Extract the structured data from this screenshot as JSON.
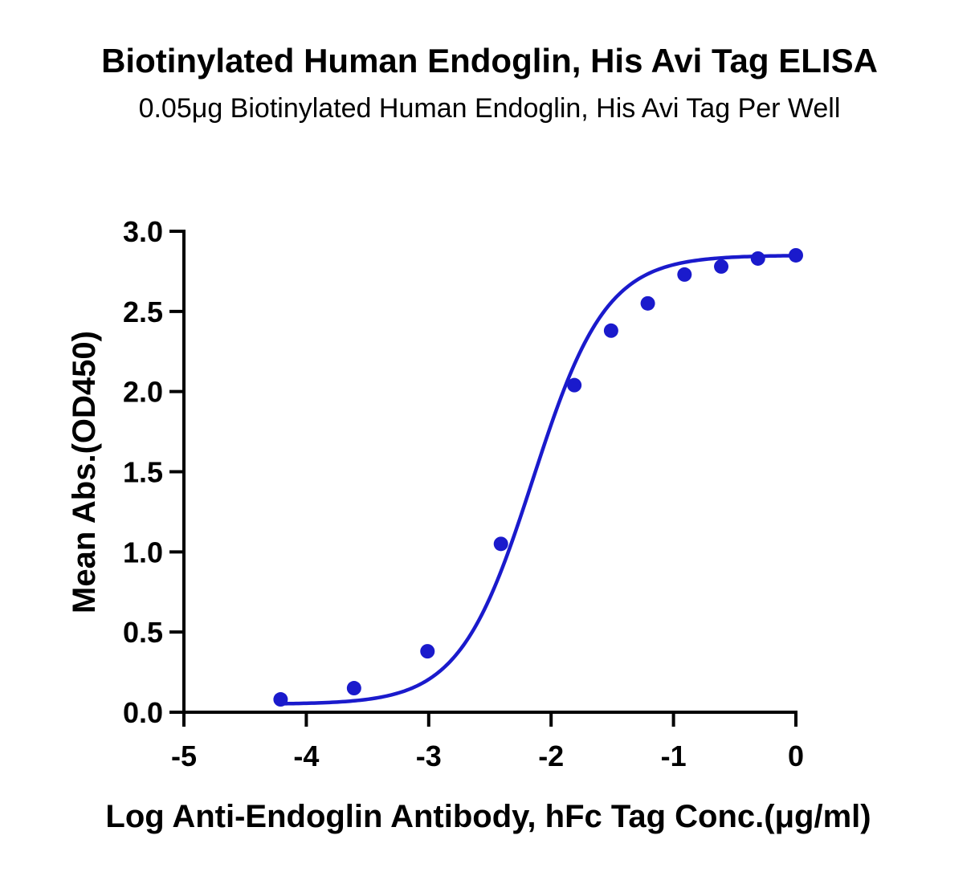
{
  "chart_data": {
    "type": "scatter",
    "title": "Biotinylated Human Endoglin, His Avi Tag ELISA",
    "subtitle": "0.05μg Biotinylated Human Endoglin, His Avi Tag Per Well",
    "xlabel": "Log Anti-Endoglin Antibody, hFc Tag Conc.(μg/ml)",
    "ylabel": "Mean Abs.(OD450)",
    "xlim": [
      -5,
      0
    ],
    "ylim": [
      0,
      3.0
    ],
    "x_ticks": [
      -5,
      -4,
      -3,
      -2,
      -1,
      0
    ],
    "x_tick_labels": [
      "-5",
      "-4",
      "-3",
      "-2",
      "-1",
      "0"
    ],
    "y_ticks": [
      0,
      0.5,
      1.0,
      1.5,
      2.0,
      2.5,
      3.0
    ],
    "y_tick_labels": [
      "0.0",
      "0.5",
      "1.0",
      "1.5",
      "2.0",
      "2.5",
      "3.0"
    ],
    "grid": false,
    "color": "#1a1acc",
    "series": [
      {
        "x": [
          -4.21,
          -3.61,
          -3.01,
          -2.41,
          -1.81,
          -1.51,
          -1.21,
          -0.91,
          -0.61,
          -0.31,
          0.0
        ],
        "y": [
          0.08,
          0.15,
          0.38,
          1.05,
          2.04,
          2.38,
          2.55,
          2.73,
          2.78,
          2.83,
          2.85
        ]
      }
    ],
    "fit_curve": {
      "type": "4PL",
      "bottom": 0.05,
      "top": 2.85,
      "logEC50": -2.15,
      "hill": 1.45
    }
  }
}
